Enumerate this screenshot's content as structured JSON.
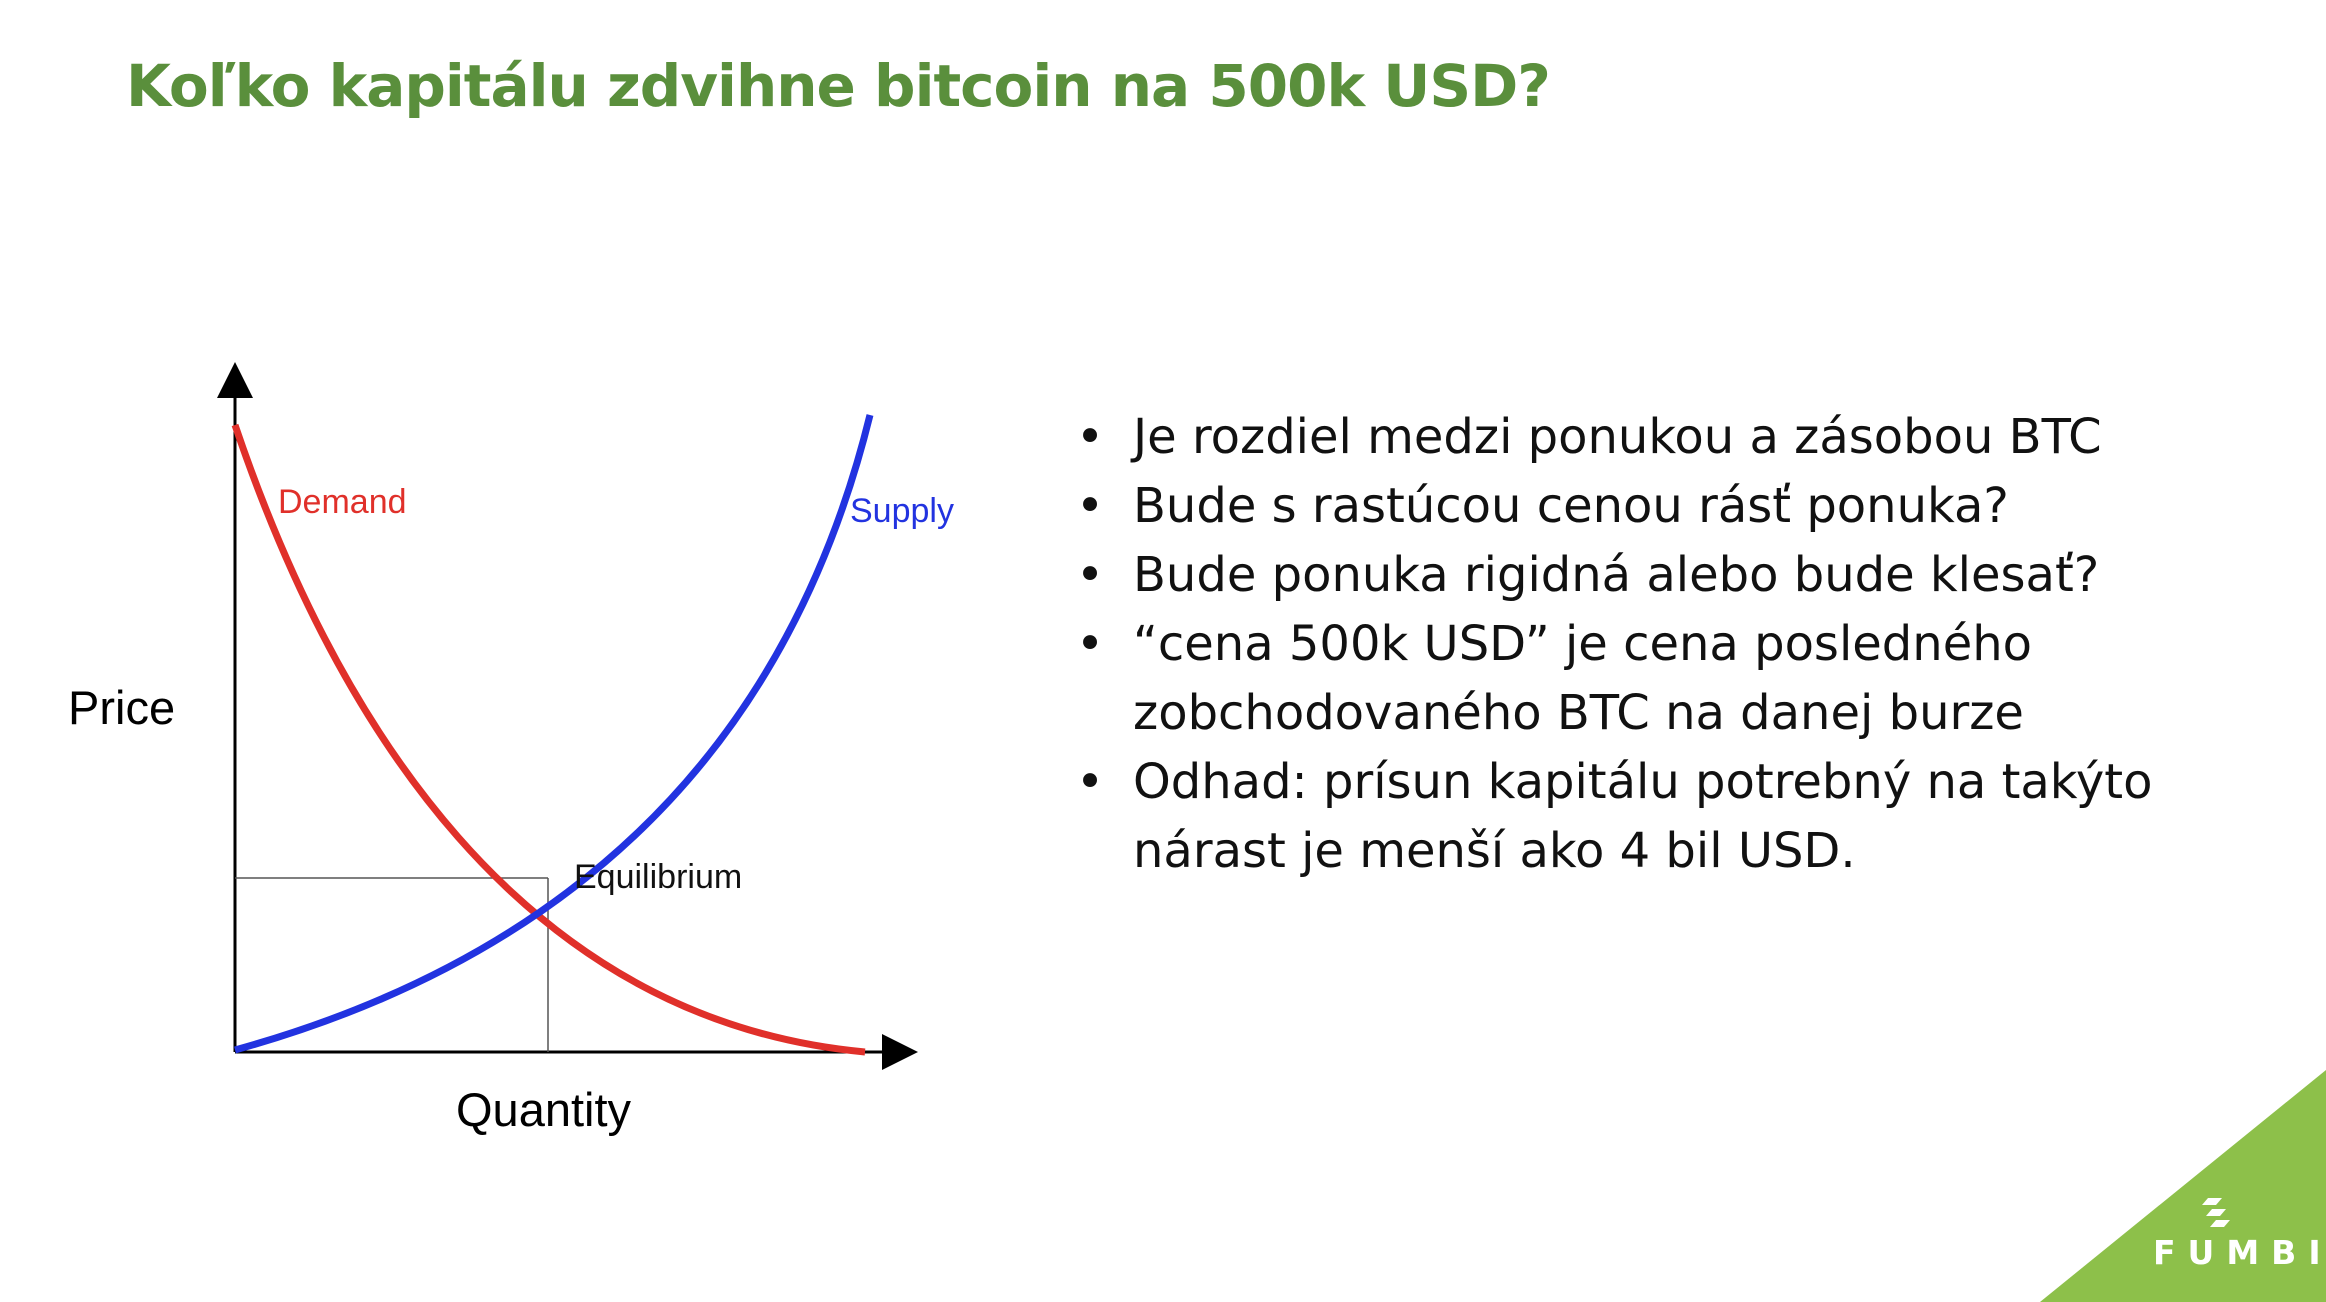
{
  "slide": {
    "title": "Koľko kapitálu zdvihne bitcoin na 500k USD?",
    "accent_color": "#5a8f3c",
    "corner_color": "#8dc04a"
  },
  "chart_data": {
    "type": "line",
    "title": "",
    "xlabel": "Quantity",
    "ylabel": "Price",
    "grid": false,
    "series": [
      {
        "name": "Demand",
        "color": "#e0302a",
        "shape": "convex-decreasing"
      },
      {
        "name": "Supply",
        "color": "#2233e0",
        "shape": "convex-increasing"
      }
    ],
    "annotations": [
      {
        "text": "Equilibrium",
        "at": "intersection of Demand and Supply",
        "guides": "dashed-to-axes"
      }
    ]
  },
  "bullets": [
    "Je rozdiel medzi ponukou a zásobou BTC",
    "Bude s rastúcou cenou rásť ponuka?",
    "Bude ponuka rigidná alebo bude klesať?",
    "“cena 500k USD” je cena posledného zobchodovaného BTC na danej burze",
    "Odhad: prísun kapitálu potrebný na takýto nárast je menší ako 4 bil USD."
  ],
  "logo": {
    "text": "FUMBI",
    "icon": "fumbi-logo-icon"
  }
}
